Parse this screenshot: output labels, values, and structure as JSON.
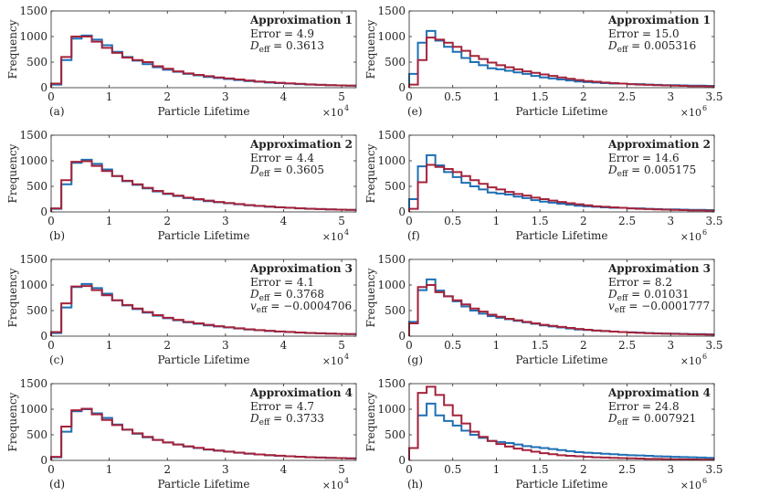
{
  "colors": {
    "blue": "#1f6fb4",
    "red": "#a3233b"
  },
  "chart_data": [
    {
      "id": "a",
      "type": "histogram",
      "panel_label": "(a)",
      "title": "Approximation 1",
      "ann": [
        {
          "label": "Error",
          "value": "4.9"
        },
        {
          "label": "D",
          "sub": "eff",
          "value": "0.3613"
        }
      ],
      "xlabel": "Particle Lifetime",
      "ylabel": "Frequency",
      "xlim": [
        0,
        52500
      ],
      "ylim": [
        0,
        1500
      ],
      "xticks": [
        0,
        10000,
        20000,
        30000,
        40000,
        50000
      ],
      "xtick_labels": [
        "0",
        "1",
        "2",
        "3",
        "4",
        "5"
      ],
      "yticks": [
        0,
        500,
        1000,
        1500
      ],
      "ytick_labels": [
        "0",
        "500",
        "1000",
        "1500"
      ],
      "multiplier": "×10",
      "multiplier_exp": "4",
      "bin_width": 1750,
      "series": [
        {
          "name": "blue",
          "values": [
            60,
            540,
            960,
            1020,
            940,
            830,
            700,
            600,
            530,
            460,
            400,
            350,
            310,
            270,
            240,
            210,
            190,
            170,
            150,
            130,
            115,
            100,
            90,
            80,
            70,
            60,
            55,
            50,
            45,
            40
          ]
        },
        {
          "name": "red",
          "values": [
            80,
            600,
            1000,
            1000,
            900,
            780,
            680,
            590,
            540,
            500,
            420,
            370,
            320,
            280,
            250,
            225,
            200,
            180,
            160,
            140,
            120,
            110,
            95,
            85,
            75,
            65,
            55,
            50,
            45,
            40
          ]
        }
      ]
    },
    {
      "id": "e",
      "type": "histogram",
      "panel_label": "(e)",
      "title": "Approximation 1",
      "ann": [
        {
          "label": "Error",
          "value": "15.0"
        },
        {
          "label": "D",
          "sub": "eff",
          "value": "0.005316"
        }
      ],
      "xlabel": "Particle Lifetime",
      "ylabel": "Frequency",
      "xlim": [
        0,
        3500000
      ],
      "ylim": [
        0,
        1500
      ],
      "xticks": [
        0,
        500000,
        1000000,
        1500000,
        2000000,
        2500000,
        3000000,
        3500000
      ],
      "xtick_labels": [
        "0",
        "0.5",
        "1",
        "1.5",
        "2",
        "2.5",
        "3",
        "3.5"
      ],
      "yticks": [
        0,
        500,
        1000,
        1500
      ],
      "ytick_labels": [
        "0",
        "500",
        "1000",
        "1500"
      ],
      "multiplier": "×10",
      "multiplier_exp": "6",
      "bin_width": 100000,
      "series": [
        {
          "name": "blue",
          "values": [
            270,
            880,
            1110,
            920,
            800,
            700,
            580,
            500,
            440,
            380,
            360,
            330,
            300,
            270,
            230,
            200,
            180,
            160,
            140,
            120,
            110,
            100,
            90,
            80,
            80,
            70,
            70,
            60,
            55,
            50,
            50,
            45,
            40,
            40,
            35
          ]
        },
        {
          "name": "red",
          "values": [
            60,
            540,
            980,
            940,
            880,
            800,
            720,
            620,
            560,
            490,
            440,
            400,
            360,
            320,
            290,
            260,
            230,
            200,
            175,
            150,
            130,
            115,
            100,
            90,
            80,
            70,
            60,
            55,
            50,
            45,
            40,
            35,
            30,
            30,
            25
          ]
        }
      ]
    },
    {
      "id": "b",
      "type": "histogram",
      "panel_label": "(b)",
      "title": "Approximation 2",
      "ann": [
        {
          "label": "Error",
          "value": "4.4"
        },
        {
          "label": "D",
          "sub": "eff",
          "value": "0.3605"
        }
      ],
      "xlabel": "Particle Lifetime",
      "ylabel": "Frequency",
      "xlim": [
        0,
        52500
      ],
      "ylim": [
        0,
        1500
      ],
      "xticks": [
        0,
        10000,
        20000,
        30000,
        40000,
        50000
      ],
      "xtick_labels": [
        "0",
        "1",
        "2",
        "3",
        "4",
        "5"
      ],
      "yticks": [
        0,
        500,
        1000,
        1500
      ],
      "ytick_labels": [
        "0",
        "500",
        "1000",
        "1500"
      ],
      "multiplier": "×10",
      "multiplier_exp": "4",
      "bin_width": 1750,
      "series": [
        {
          "name": "blue",
          "values": [
            60,
            540,
            960,
            1020,
            940,
            830,
            700,
            600,
            530,
            460,
            400,
            350,
            310,
            270,
            240,
            210,
            190,
            170,
            150,
            130,
            115,
            100,
            90,
            80,
            70,
            60,
            55,
            50,
            45,
            40
          ]
        },
        {
          "name": "red",
          "values": [
            70,
            620,
            980,
            990,
            900,
            800,
            700,
            610,
            540,
            470,
            410,
            360,
            320,
            280,
            250,
            220,
            195,
            175,
            155,
            135,
            118,
            104,
            92,
            82,
            72,
            63,
            56,
            50,
            45,
            40
          ]
        }
      ]
    },
    {
      "id": "f",
      "type": "histogram",
      "panel_label": "(f)",
      "title": "Approximation 2",
      "ann": [
        {
          "label": "Error",
          "value": "14.6"
        },
        {
          "label": "D",
          "sub": "eff",
          "value": "0.005175"
        }
      ],
      "xlabel": "Particle Lifetime",
      "ylabel": "Frequency",
      "xlim": [
        0,
        3500000
      ],
      "ylim": [
        0,
        1500
      ],
      "xticks": [
        0,
        500000,
        1000000,
        1500000,
        2000000,
        2500000,
        3000000,
        3500000
      ],
      "xtick_labels": [
        "0",
        "0.5",
        "1",
        "1.5",
        "2",
        "2.5",
        "3",
        "3.5"
      ],
      "yticks": [
        0,
        500,
        1000,
        1500
      ],
      "ytick_labels": [
        "0",
        "500",
        "1000",
        "1500"
      ],
      "multiplier": "×10",
      "multiplier_exp": "6",
      "bin_width": 100000,
      "series": [
        {
          "name": "blue",
          "values": [
            250,
            890,
            1110,
            910,
            780,
            680,
            570,
            500,
            440,
            380,
            360,
            340,
            300,
            270,
            230,
            200,
            180,
            160,
            140,
            120,
            110,
            100,
            90,
            80,
            80,
            70,
            70,
            60,
            55,
            50,
            50,
            45,
            40,
            40,
            35
          ]
        },
        {
          "name": "red",
          "values": [
            60,
            580,
            920,
            880,
            840,
            780,
            700,
            620,
            550,
            480,
            440,
            390,
            350,
            320,
            280,
            250,
            220,
            195,
            170,
            150,
            130,
            110,
            100,
            90,
            80,
            70,
            60,
            55,
            50,
            45,
            40,
            35,
            30,
            30,
            25
          ]
        }
      ]
    },
    {
      "id": "c",
      "type": "histogram",
      "panel_label": "(c)",
      "title": "Approximation 3",
      "ann": [
        {
          "label": "Error",
          "value": "4.1"
        },
        {
          "label": "D",
          "sub": "eff",
          "value": "0.3768"
        },
        {
          "label": "v",
          "sub": "eff",
          "value": "−0.0004706"
        }
      ],
      "xlabel": "Particle Lifetime",
      "ylabel": "Frequency",
      "xlim": [
        0,
        52500
      ],
      "ylim": [
        0,
        1500
      ],
      "xticks": [
        0,
        10000,
        20000,
        30000,
        40000,
        50000
      ],
      "xtick_labels": [
        "0",
        "1",
        "2",
        "3",
        "4",
        "5"
      ],
      "yticks": [
        0,
        500,
        1000,
        1500
      ],
      "ytick_labels": [
        "0",
        "500",
        "1000",
        "1500"
      ],
      "multiplier": "×10",
      "multiplier_exp": "4",
      "bin_width": 1750,
      "series": [
        {
          "name": "blue",
          "values": [
            60,
            560,
            960,
            1020,
            940,
            830,
            700,
            600,
            530,
            460,
            400,
            350,
            310,
            270,
            240,
            210,
            190,
            170,
            150,
            130,
            115,
            100,
            90,
            80,
            70,
            60,
            55,
            50,
            45,
            40
          ]
        },
        {
          "name": "red",
          "values": [
            80,
            640,
            970,
            980,
            900,
            800,
            700,
            610,
            540,
            470,
            410,
            360,
            320,
            280,
            250,
            220,
            195,
            175,
            155,
            135,
            118,
            104,
            92,
            82,
            72,
            63,
            56,
            50,
            45,
            40
          ]
        }
      ]
    },
    {
      "id": "g",
      "type": "histogram",
      "panel_label": "(g)",
      "title": "Approximation 3",
      "ann": [
        {
          "label": "Error",
          "value": "8.2"
        },
        {
          "label": "D",
          "sub": "eff",
          "value": "0.01031"
        },
        {
          "label": "v",
          "sub": "eff",
          "value": "−0.0001777"
        }
      ],
      "xlabel": "Particle Lifetime",
      "ylabel": "Frequency",
      "xlim": [
        0,
        3500000
      ],
      "ylim": [
        0,
        1500
      ],
      "xticks": [
        0,
        500000,
        1000000,
        1500000,
        2000000,
        2500000,
        3000000,
        3500000
      ],
      "xtick_labels": [
        "0",
        "0.5",
        "1",
        "1.5",
        "2",
        "2.5",
        "3",
        "3.5"
      ],
      "yticks": [
        0,
        500,
        1000,
        1500
      ],
      "ytick_labels": [
        "0",
        "500",
        "1000",
        "1500"
      ],
      "multiplier": "×10",
      "multiplier_exp": "6",
      "bin_width": 100000,
      "series": [
        {
          "name": "blue",
          "values": [
            280,
            900,
            1110,
            890,
            780,
            680,
            580,
            500,
            440,
            390,
            360,
            330,
            300,
            270,
            240,
            210,
            190,
            170,
            150,
            130,
            120,
            110,
            100,
            90,
            80,
            75,
            70,
            60,
            55,
            50,
            50,
            45,
            40,
            40,
            35
          ]
        },
        {
          "name": "red",
          "values": [
            250,
            960,
            1000,
            860,
            780,
            700,
            620,
            540,
            480,
            420,
            380,
            340,
            310,
            280,
            250,
            220,
            200,
            180,
            160,
            140,
            125,
            110,
            100,
            90,
            80,
            72,
            65,
            58,
            52,
            48,
            44,
            40,
            36,
            34,
            30
          ]
        }
      ]
    },
    {
      "id": "d",
      "type": "histogram",
      "panel_label": "(d)",
      "title": "Approximation 4",
      "ann": [
        {
          "label": "Error",
          "value": "4.7"
        },
        {
          "label": "D",
          "sub": "eff",
          "value": "0.3733"
        }
      ],
      "xlabel": "Particle Lifetime",
      "ylabel": "Frequency",
      "xlim": [
        0,
        52500
      ],
      "ylim": [
        0,
        1500
      ],
      "xticks": [
        0,
        10000,
        20000,
        30000,
        40000,
        50000
      ],
      "xtick_labels": [
        "0",
        "1",
        "2",
        "3",
        "4",
        "5"
      ],
      "yticks": [
        0,
        500,
        1000,
        1500
      ],
      "ytick_labels": [
        "0",
        "500",
        "1000",
        "1500"
      ],
      "multiplier": "×10",
      "multiplier_exp": "4",
      "bin_width": 1750,
      "series": [
        {
          "name": "blue",
          "values": [
            60,
            560,
            960,
            1000,
            920,
            830,
            700,
            600,
            520,
            450,
            400,
            350,
            310,
            270,
            240,
            210,
            190,
            170,
            150,
            130,
            115,
            100,
            90,
            80,
            70,
            60,
            55,
            50,
            45,
            40
          ]
        },
        {
          "name": "red",
          "values": [
            70,
            660,
            980,
            1010,
            900,
            790,
            690,
            600,
            530,
            460,
            400,
            350,
            310,
            275,
            245,
            215,
            192,
            172,
            152,
            133,
            117,
            103,
            91,
            81,
            71,
            62,
            55,
            49,
            44,
            39
          ]
        }
      ]
    },
    {
      "id": "h",
      "type": "histogram",
      "panel_label": "(h)",
      "title": "Approximation 4",
      "ann": [
        {
          "label": "Error",
          "value": "24.8"
        },
        {
          "label": "D",
          "sub": "eff",
          "value": "0.007921"
        }
      ],
      "xlabel": "Particle Lifetime",
      "ylabel": "Frequency",
      "xlim": [
        0,
        3500000
      ],
      "ylim": [
        0,
        1500
      ],
      "xticks": [
        0,
        500000,
        1000000,
        1500000,
        2000000,
        2500000,
        3000000,
        3500000
      ],
      "xtick_labels": [
        "0",
        "0.5",
        "1",
        "1.5",
        "2",
        "2.5",
        "3",
        "3.5"
      ],
      "yticks": [
        0,
        500,
        1000,
        1500
      ],
      "ytick_labels": [
        "0",
        "500",
        "1000",
        "1500"
      ],
      "multiplier": "×10",
      "multiplier_exp": "6",
      "bin_width": 100000,
      "series": [
        {
          "name": "blue",
          "values": [
            240,
            880,
            1110,
            880,
            770,
            680,
            580,
            500,
            440,
            380,
            360,
            340,
            310,
            280,
            260,
            240,
            220,
            200,
            180,
            160,
            150,
            140,
            130,
            120,
            110,
            100,
            95,
            90,
            80,
            75,
            70,
            65,
            60,
            55,
            50
          ]
        },
        {
          "name": "red",
          "values": [
            240,
            1320,
            1440,
            1280,
            1080,
            880,
            720,
            560,
            460,
            380,
            320,
            270,
            230,
            200,
            170,
            140,
            120,
            100,
            90,
            80,
            70,
            60,
            55,
            50,
            45,
            40,
            35,
            30,
            28,
            25,
            22,
            20,
            18,
            16,
            15
          ]
        }
      ]
    }
  ]
}
